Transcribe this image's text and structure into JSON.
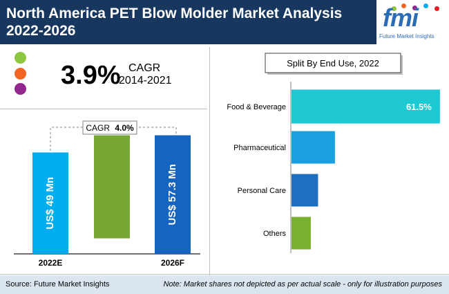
{
  "header": {
    "title": "North America PET Blow Molder Market Analysis 2022-2026",
    "logo_text": "fmi",
    "logo_subtitle": "Future Market Insights"
  },
  "colors": {
    "header_bg": "#17375e",
    "legend_green": "#8dc63f",
    "legend_orange": "#f26522",
    "legend_purple": "#92278f",
    "bar_cyan": "#00aeef",
    "bar_blue": "#1565c0",
    "bar_green": "#76a734",
    "food": "#1ec8d2",
    "pharma": "#1aa0e0",
    "personal": "#1f6fc0",
    "others": "#7ab030"
  },
  "cagr": {
    "value": "3.9%",
    "label": "CAGR",
    "period": "2014-2021"
  },
  "chart_data": [
    {
      "type": "bar",
      "title": "",
      "categories": [
        "2022E",
        "2026F"
      ],
      "values": [
        49,
        57.3
      ],
      "value_labels": [
        "US$ 49 Mn",
        "US$ 57.3 Mn"
      ],
      "increment_label": "CAGR",
      "increment_value": "4.0%",
      "ylim": [
        0,
        60
      ]
    },
    {
      "type": "bar",
      "orientation": "horizontal",
      "title": "Split By End Use, 2022",
      "categories": [
        "Food & Beverage",
        "Pharmaceutical",
        "Personal Care",
        "Others"
      ],
      "values": [
        61.5,
        18,
        11,
        8
      ],
      "value_labels": [
        "61.5%",
        "",
        "",
        ""
      ],
      "xlim": [
        0,
        80
      ]
    }
  ],
  "footer": {
    "source": "Source: Future Market Insights",
    "note": "Note: Market shares not depicted as per actual scale - only for illustration purposes"
  }
}
